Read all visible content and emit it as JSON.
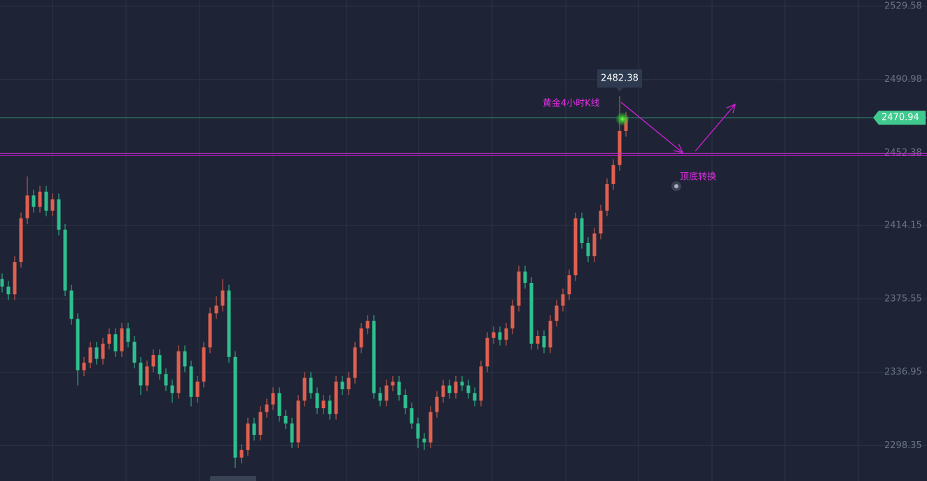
{
  "chart_data": {
    "type": "candlestick",
    "annotations": [
      "黄金4小时K线",
      "顶底转换"
    ],
    "up_color": "#e0604f",
    "down_color": "#2fbf8f",
    "last_price_color": "#3fc98e",
    "support_color": "#d21fd8",
    "support_level": 2451.5,
    "ylim": [
      2279.7,
      2532.9
    ],
    "yticks": [
      2529.58,
      2490.98,
      2452.38,
      2414.15,
      2375.55,
      2336.95,
      2298.35
    ],
    "grid": true,
    "candles": [
      [
        2386,
        2389,
        2379,
        2382
      ],
      [
        2382,
        2385,
        2375,
        2378
      ],
      [
        2378,
        2398,
        2375,
        2395
      ],
      [
        2395,
        2421,
        2392,
        2418
      ],
      [
        2418,
        2440,
        2415,
        2430
      ],
      [
        2430,
        2433,
        2421,
        2424
      ],
      [
        2424,
        2435,
        2421,
        2432
      ],
      [
        2432,
        2435,
        2419,
        2422
      ],
      [
        2422,
        2431,
        2419,
        2428
      ],
      [
        2428,
        2431,
        2409,
        2412
      ],
      [
        2412,
        2415,
        2377,
        2380
      ],
      [
        2380,
        2383,
        2362,
        2365
      ],
      [
        2365,
        2368,
        2330,
        2338
      ],
      [
        2338,
        2345,
        2335,
        2342
      ],
      [
        2342,
        2353,
        2339,
        2350
      ],
      [
        2350,
        2353,
        2341,
        2344
      ],
      [
        2344,
        2355,
        2341,
        2352
      ],
      [
        2352,
        2360,
        2349,
        2357
      ],
      [
        2357,
        2360,
        2345,
        2348
      ],
      [
        2348,
        2363,
        2345,
        2360
      ],
      [
        2360,
        2363,
        2350,
        2353
      ],
      [
        2353,
        2356,
        2339,
        2342
      ],
      [
        2342,
        2345,
        2325,
        2330
      ],
      [
        2330,
        2343,
        2327,
        2340
      ],
      [
        2340,
        2349,
        2337,
        2346
      ],
      [
        2346,
        2349,
        2333,
        2336
      ],
      [
        2336,
        2339,
        2327,
        2330
      ],
      [
        2330,
        2333,
        2321,
        2326
      ],
      [
        2326,
        2351,
        2323,
        2348
      ],
      [
        2348,
        2351,
        2337,
        2340
      ],
      [
        2340,
        2343,
        2319,
        2324
      ],
      [
        2324,
        2335,
        2321,
        2332
      ],
      [
        2332,
        2353,
        2329,
        2350
      ],
      [
        2350,
        2371,
        2347,
        2368
      ],
      [
        2368,
        2377,
        2365,
        2372
      ],
      [
        2372,
        2386,
        2369,
        2380
      ],
      [
        2380,
        2383,
        2342,
        2345
      ],
      [
        2345,
        2348,
        2286.7,
        2292
      ],
      [
        2292,
        2299,
        2289,
        2296
      ],
      [
        2296,
        2313,
        2293,
        2310
      ],
      [
        2310,
        2313,
        2301,
        2304
      ],
      [
        2304,
        2319,
        2301,
        2316
      ],
      [
        2316,
        2323,
        2313,
        2320
      ],
      [
        2320,
        2329,
        2317,
        2326
      ],
      [
        2326,
        2329,
        2311,
        2314
      ],
      [
        2314,
        2317,
        2307,
        2310
      ],
      [
        2310,
        2313,
        2297,
        2300
      ],
      [
        2300,
        2325,
        2297,
        2322
      ],
      [
        2322,
        2337,
        2319,
        2334
      ],
      [
        2334,
        2337,
        2323,
        2326
      ],
      [
        2326,
        2329,
        2315,
        2318
      ],
      [
        2318,
        2325,
        2315,
        2322
      ],
      [
        2322,
        2325,
        2312,
        2315
      ],
      [
        2315,
        2335,
        2312,
        2332
      ],
      [
        2332,
        2335,
        2325,
        2328
      ],
      [
        2328,
        2337,
        2325,
        2334
      ],
      [
        2334,
        2353,
        2331,
        2350
      ],
      [
        2350,
        2363,
        2347,
        2360
      ],
      [
        2360,
        2367,
        2357,
        2364
      ],
      [
        2364,
        2367,
        2323,
        2326
      ],
      [
        2326,
        2329,
        2319,
        2322
      ],
      [
        2322,
        2333,
        2319,
        2330
      ],
      [
        2330,
        2335,
        2327,
        2332
      ],
      [
        2332,
        2335,
        2322,
        2325
      ],
      [
        2325,
        2328,
        2315,
        2318
      ],
      [
        2318,
        2321,
        2307,
        2310
      ],
      [
        2310,
        2313,
        2297,
        2302
      ],
      [
        2302,
        2305,
        2296,
        2300
      ],
      [
        2300,
        2319,
        2297,
        2316
      ],
      [
        2316,
        2327,
        2313,
        2324
      ],
      [
        2324,
        2333,
        2321,
        2330
      ],
      [
        2330,
        2333,
        2323,
        2326
      ],
      [
        2326,
        2335,
        2323,
        2332
      ],
      [
        2332,
        2335,
        2327,
        2330
      ],
      [
        2330,
        2333,
        2323,
        2326
      ],
      [
        2326,
        2329,
        2319,
        2322
      ],
      [
        2322,
        2343,
        2319,
        2340
      ],
      [
        2340,
        2358,
        2337,
        2355
      ],
      [
        2355,
        2361,
        2352,
        2358
      ],
      [
        2358,
        2361,
        2351,
        2354
      ],
      [
        2354,
        2363,
        2351,
        2360
      ],
      [
        2360,
        2375,
        2357,
        2372
      ],
      [
        2372,
        2393,
        2369,
        2390
      ],
      [
        2390,
        2393,
        2381,
        2384
      ],
      [
        2384,
        2387,
        2349,
        2352
      ],
      [
        2352,
        2359,
        2349,
        2356
      ],
      [
        2356,
        2359,
        2347,
        2350
      ],
      [
        2350,
        2367,
        2347,
        2364
      ],
      [
        2364,
        2375,
        2361,
        2372
      ],
      [
        2372,
        2381,
        2369,
        2378
      ],
      [
        2378,
        2391,
        2375,
        2388
      ],
      [
        2388,
        2421,
        2385,
        2418
      ],
      [
        2418,
        2421,
        2402,
        2405
      ],
      [
        2405,
        2408,
        2395,
        2398
      ],
      [
        2398,
        2413,
        2395,
        2410
      ],
      [
        2410,
        2425,
        2407,
        2422
      ],
      [
        2422,
        2439,
        2419,
        2436
      ],
      [
        2436,
        2449,
        2433,
        2446
      ],
      [
        2446,
        2482.38,
        2443,
        2464
      ],
      [
        2464,
        2474,
        2461,
        2470.94
      ]
    ]
  }
}
